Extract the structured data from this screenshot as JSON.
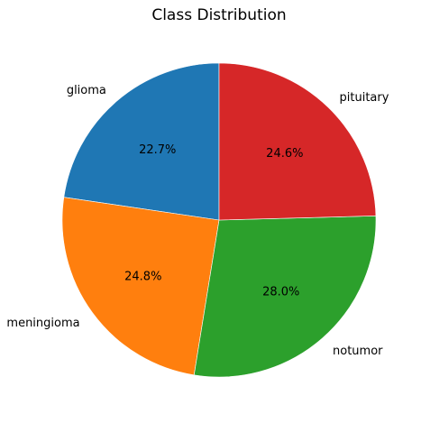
{
  "chart_data": {
    "type": "pie",
    "title": "Class Distribution",
    "categories": [
      "glioma",
      "meningioma",
      "notumor",
      "pituitary"
    ],
    "values": [
      22.7,
      24.8,
      28.0,
      24.6
    ],
    "value_labels": [
      "22.7%",
      "24.8%",
      "28.0%",
      "24.6%"
    ],
    "colors": [
      "#1f77b4",
      "#ff7f0e",
      "#2ca02c",
      "#d62728"
    ],
    "start_angle_deg": 90,
    "direction": "counterclockwise",
    "legend": "none"
  }
}
